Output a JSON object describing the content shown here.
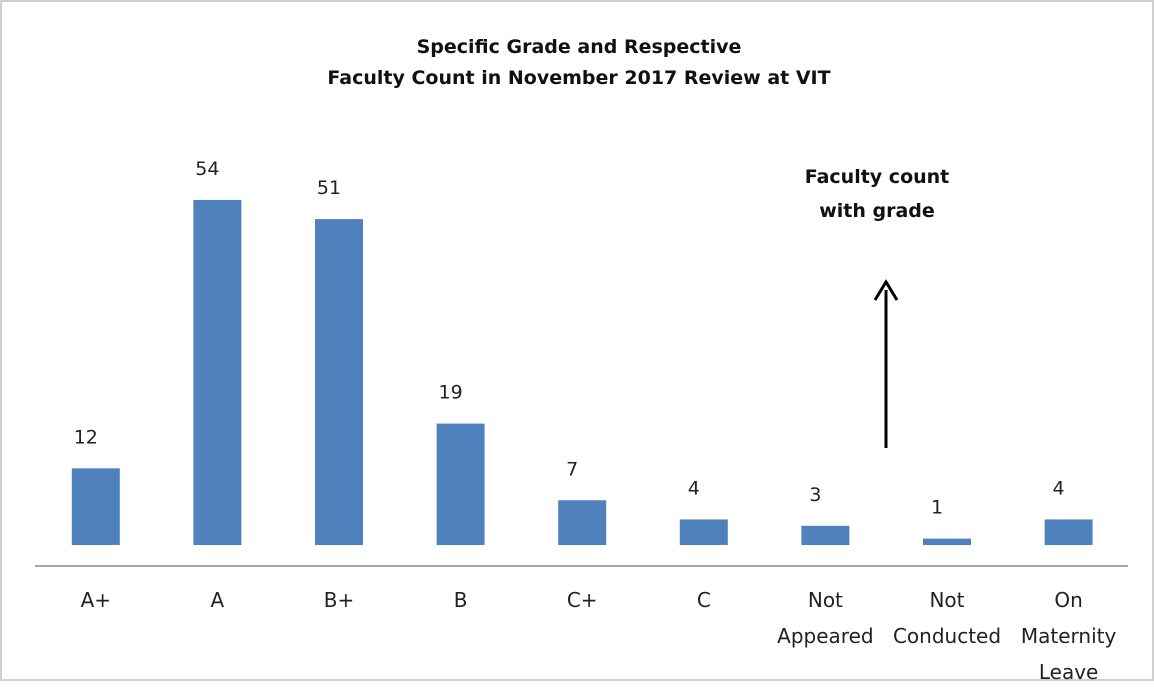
{
  "chart_data": {
    "type": "bar",
    "title": [
      "Specific Grade and Respective",
      "Faculty Count in November 2017 Review at VIT"
    ],
    "annotation": "Faculty count with grade",
    "categories": [
      "A+",
      "A",
      "B+",
      "B",
      "C+",
      "C",
      "Not Appeared",
      "Not Conducted",
      "On Maternity Leave"
    ],
    "values": [
      12,
      54,
      51,
      19,
      7,
      4,
      3,
      1,
      4
    ],
    "color": "#4f81bd"
  }
}
